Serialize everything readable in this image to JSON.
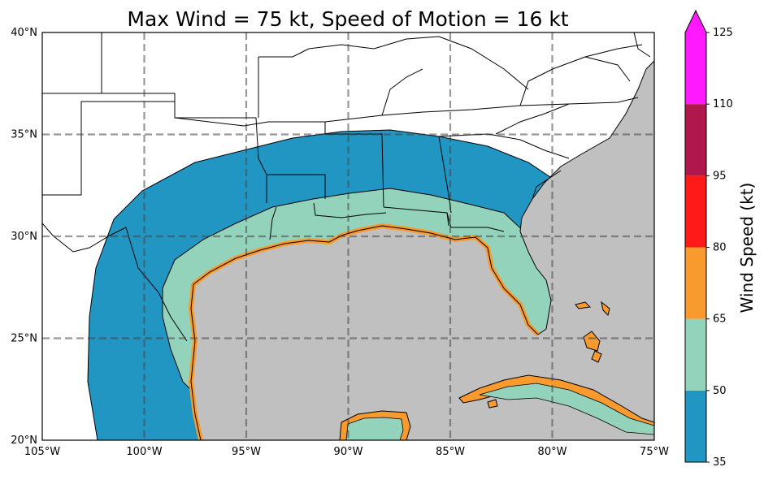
{
  "chart_data": {
    "type": "heatmap",
    "title": "Max Wind = 75 kt, Speed of Motion = 16 kt",
    "map": {
      "lon_range": [
        -105,
        -75
      ],
      "lat_range": [
        20,
        40
      ],
      "lon_ticks": [
        {
          "value": -105,
          "label": "105°W"
        },
        {
          "value": -100,
          "label": "100°W"
        },
        {
          "value": -95,
          "label": "95°W"
        },
        {
          "value": -90,
          "label": "90°W"
        },
        {
          "value": -85,
          "label": "85°W"
        },
        {
          "value": -80,
          "label": "80°W"
        },
        {
          "value": -75,
          "label": "75°W"
        }
      ],
      "lat_ticks": [
        {
          "value": 20,
          "label": "20°N"
        },
        {
          "value": 25,
          "label": "25°N"
        },
        {
          "value": 30,
          "label": "30°N"
        },
        {
          "value": 35,
          "label": "35°N"
        },
        {
          "value": 40,
          "label": "40°N"
        }
      ],
      "grid": true,
      "ocean_color": "#c0c0c0",
      "land_color": "#ffffff"
    },
    "colorbar": {
      "label": "Wind Speed (kt)",
      "extend": "max",
      "bins": [
        {
          "min": 35,
          "max": 50,
          "color": "#2196c3"
        },
        {
          "min": 50,
          "max": 65,
          "color": "#93d3bb"
        },
        {
          "min": 65,
          "max": 80,
          "color": "#f99a2f"
        },
        {
          "min": 80,
          "max": 95,
          "color": "#ff1a1a"
        },
        {
          "min": 95,
          "max": 110,
          "color": "#b0184d"
        },
        {
          "min": 110,
          "max": 125,
          "color": "#ff19ff"
        }
      ],
      "extend_color": "#ff19ff",
      "ticks": [
        35,
        50,
        65,
        80,
        95,
        110,
        125
      ]
    }
  }
}
